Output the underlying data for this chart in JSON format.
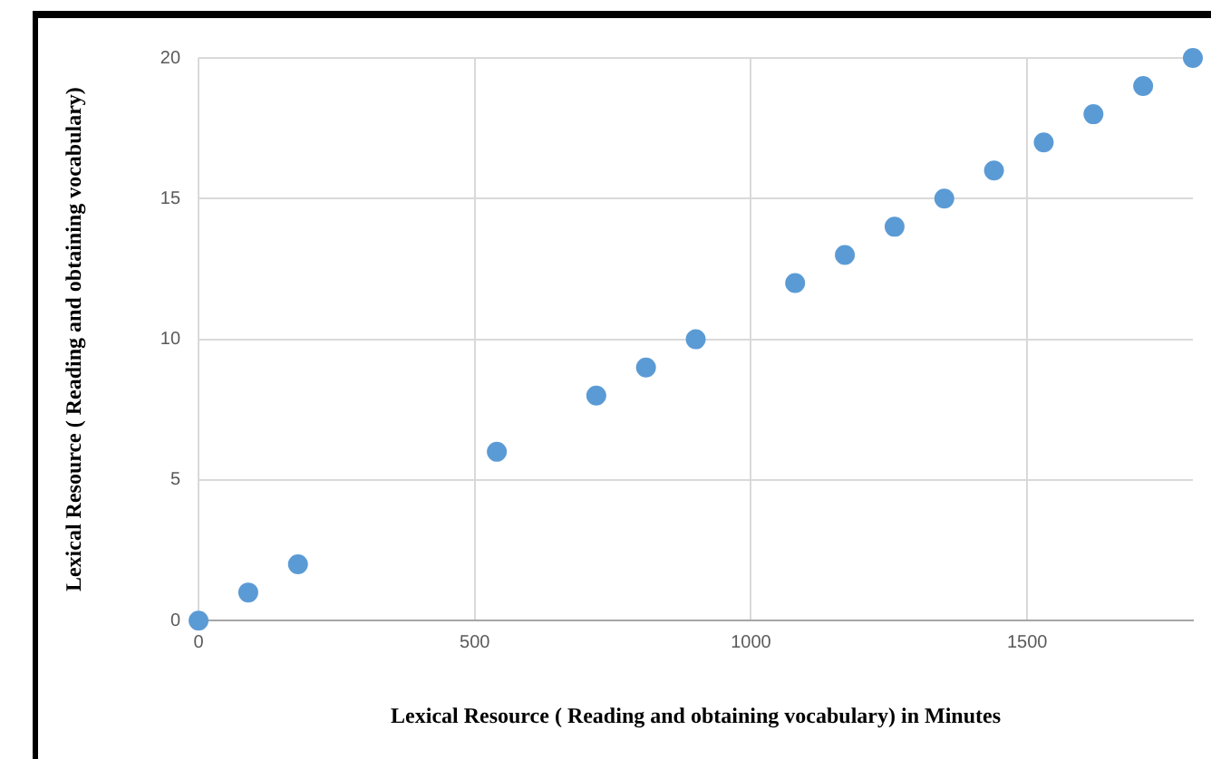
{
  "chart_data": {
    "type": "scatter",
    "xlabel": "Lexical Resource ( Reading and obtaining vocabulary) in Minutes",
    "ylabel": "Lexical Resource ( Reading and obtaining vocabulary)",
    "x": [
      0,
      90,
      180,
      540,
      720,
      810,
      900,
      1080,
      1170,
      1260,
      1350,
      1440,
      1530,
      1620,
      1710,
      1800
    ],
    "series": [
      {
        "color": "#5b9bd5",
        "values": [
          0,
          1,
          2,
          6,
          8,
          9,
          10,
          12,
          13,
          14,
          15,
          16,
          17,
          18,
          19,
          20
        ]
      }
    ],
    "xlim": [
      0,
      1800
    ],
    "xticks": [
      0,
      500,
      1000,
      1500
    ],
    "ylim": [
      0,
      20
    ],
    "yticks": [
      0,
      5,
      10,
      15,
      20
    ],
    "grid": true,
    "legend": false,
    "marker": "circle"
  }
}
